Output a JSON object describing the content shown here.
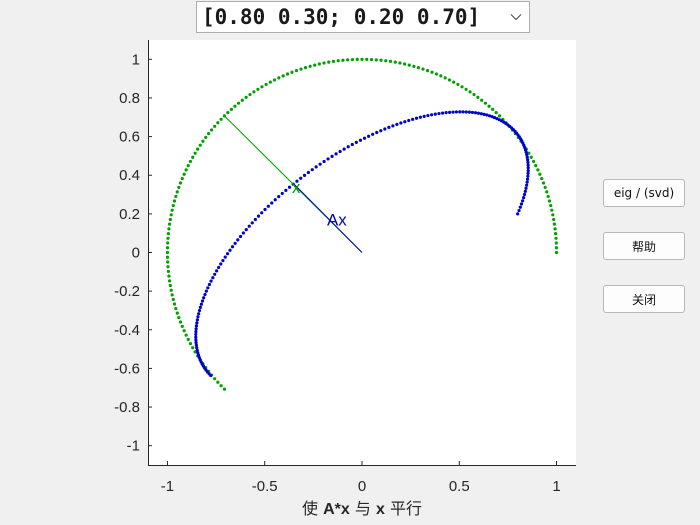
{
  "window": {
    "matrix_select": {
      "value": "[0.80 0.30; 0.20 0.70]"
    },
    "buttons": {
      "eig": "eig / (svd)",
      "help": "帮助",
      "close": "关闭"
    }
  },
  "chart_data": {
    "type": "scatter",
    "xlabel_parts": [
      "使 ",
      "A*x",
      " 与 ",
      "x",
      " 平行"
    ],
    "xlim": [
      -1.1,
      1.1
    ],
    "ylim": [
      -1.1,
      1.1
    ],
    "xticks": [
      -1,
      -0.5,
      0,
      0.5,
      1
    ],
    "xtick_labels": [
      "-1",
      "-0.5",
      "0",
      "0.5",
      "1"
    ],
    "yticks": [
      1,
      0.8,
      0.6,
      0.4,
      0.2,
      0,
      -0.2,
      -0.4,
      -0.6,
      -0.8,
      -1
    ],
    "ytick_labels": [
      "1",
      "0.8",
      "0.6",
      "0.4",
      "0.2",
      "0",
      "-0.2",
      "-0.4",
      "-0.6",
      "-0.8",
      "-1"
    ],
    "matrix": [
      [
        0.8,
        0.3
      ],
      [
        0.2,
        0.7
      ]
    ],
    "series": [
      {
        "role": "x",
        "color": "#00a000",
        "points": "unit circle x = (cos t, sin t), traced for t from 0 to 135°"
      },
      {
        "role": "Ax",
        "color": "#0000cc",
        "points": "image A*x of each traced x"
      }
    ],
    "current_x": [
      -0.71,
      0.71
    ],
    "current_Ax": [
      -0.35,
      0.355
    ],
    "annotations": {
      "x_label": "x",
      "ax_label": "Ax"
    },
    "colors": {
      "x": "#00a000",
      "Ax": "#0000cc",
      "axes": "#262626"
    },
    "grid": false
  }
}
